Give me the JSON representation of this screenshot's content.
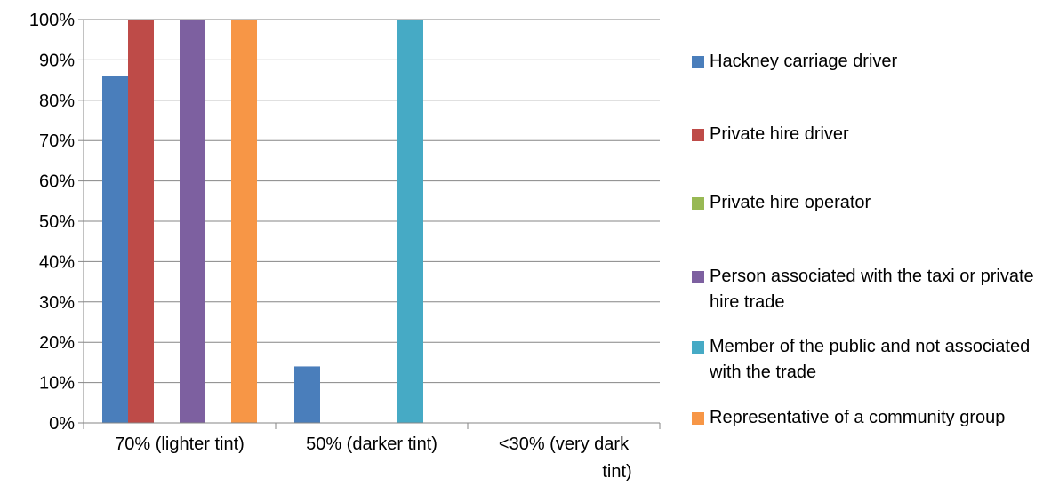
{
  "chart_data": {
    "type": "bar",
    "categories": [
      "70% (lighter tint)",
      "50% (darker tint)",
      "<30% (very dark tint)"
    ],
    "category_lines": [
      [
        "70% (lighter tint)"
      ],
      [
        "50% (darker tint)"
      ],
      [
        "<30% (very dark",
        "tint)"
      ]
    ],
    "series": [
      {
        "name": "Hackney carriage driver",
        "color": "#4A7EBB",
        "values": [
          86,
          14,
          0
        ]
      },
      {
        "name": "Private hire driver",
        "color": "#BE4B48",
        "values": [
          100,
          0,
          0
        ]
      },
      {
        "name": "Private hire operator",
        "color": "#98B954",
        "values": [
          0,
          0,
          0
        ]
      },
      {
        "name": "Person associated with the taxi or private hire trade",
        "color": "#7D60A0",
        "values": [
          100,
          0,
          0
        ]
      },
      {
        "name": "Member of the public and not associated with the trade",
        "color": "#46AAC5",
        "values": [
          0,
          100,
          0
        ]
      },
      {
        "name": "Representative of a community group",
        "color": "#F79646",
        "values": [
          100,
          0,
          0
        ]
      }
    ],
    "y_ticks": [
      "0%",
      "10%",
      "20%",
      "30%",
      "40%",
      "50%",
      "60%",
      "70%",
      "80%",
      "90%",
      "100%"
    ],
    "ylim": [
      0,
      100
    ],
    "grid": true,
    "legend_position": "right",
    "title": "",
    "xlabel": "",
    "ylabel": ""
  }
}
